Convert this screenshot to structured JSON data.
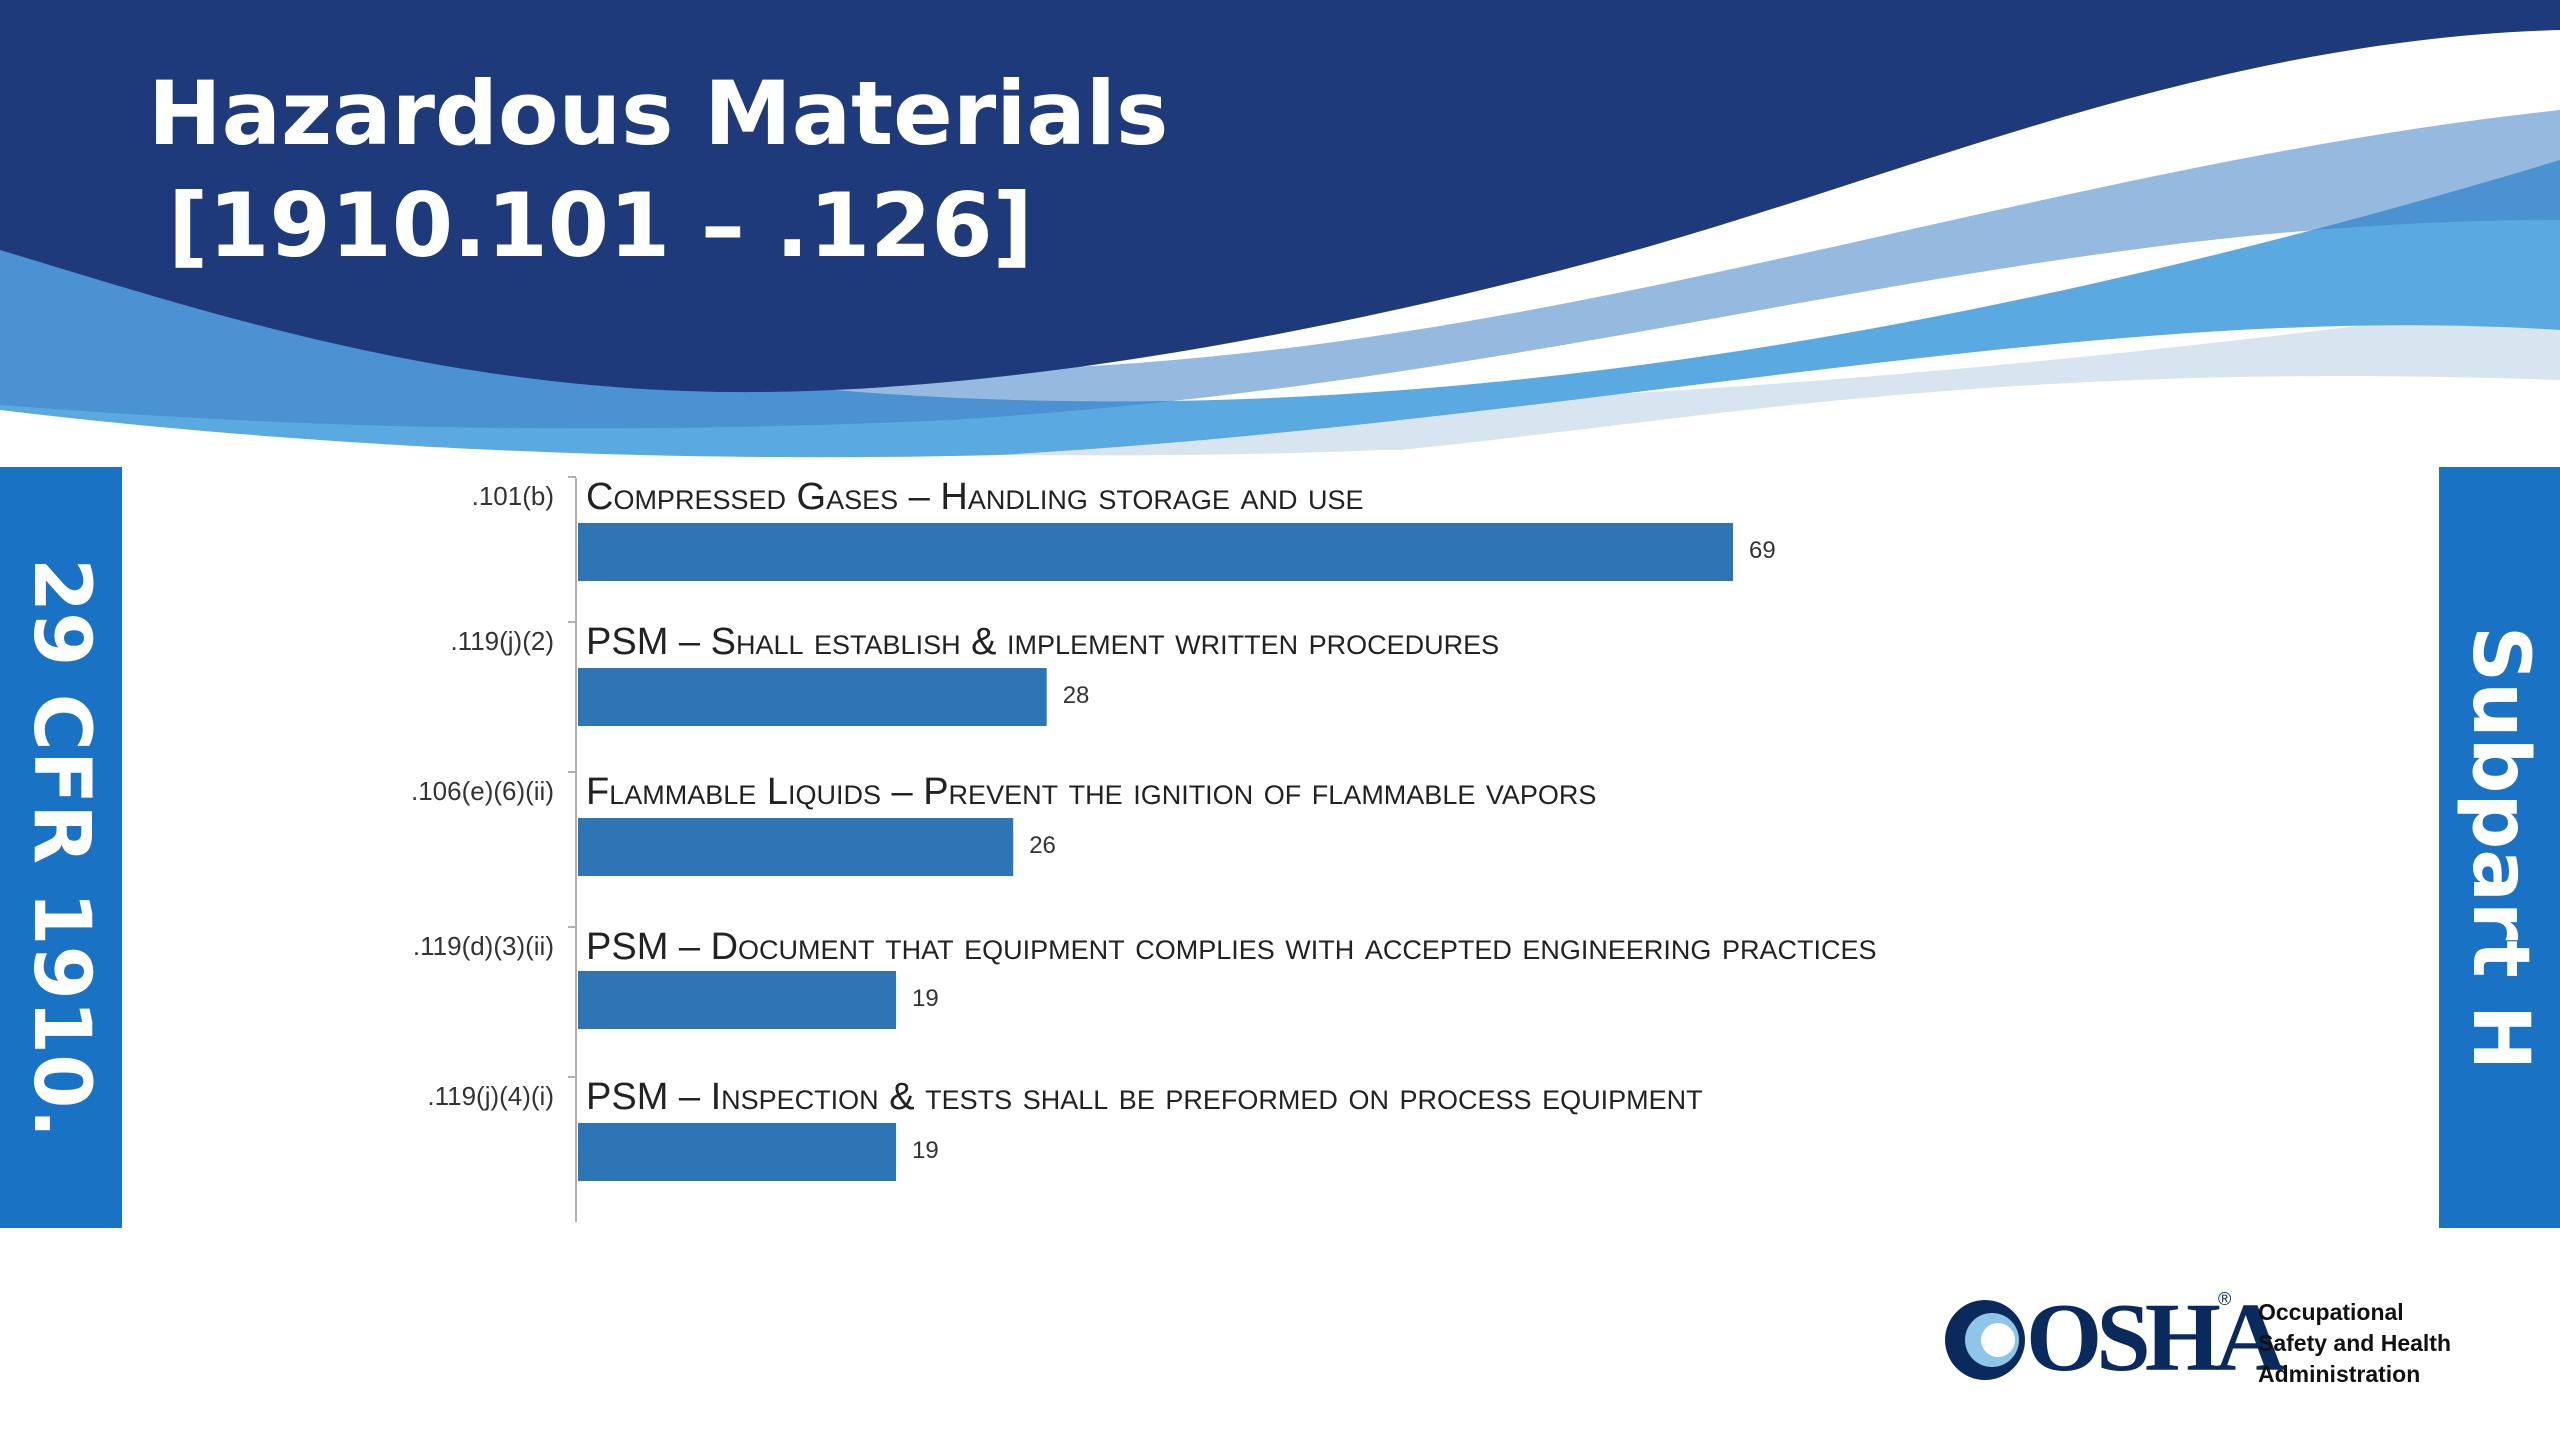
{
  "slide": {
    "title_line_1": "Hazardous Materials",
    "title_line_2": "[1910.101 – .126]",
    "left_banner": "29 CFR 1910.",
    "right_banner": "Subpart H"
  },
  "colors": {
    "header_navy": "#1f3a7a",
    "header_light_blue": "#5aa9e0",
    "header_pale_blue": "#d8e4f0",
    "banner_blue": "#1a72c4",
    "bar_blue": "#2e75b6",
    "osha_navy": "#0a2a5e"
  },
  "chart_data": {
    "type": "bar",
    "orientation": "horizontal",
    "categories": [
      ".101(b)",
      ".119(j)(2)",
      ".106(e)(6)(ii)",
      ".119(d)(3)(ii)",
      ".119(j)(4)(i)"
    ],
    "descriptions": [
      "Compressed Gases – Handling storage and use",
      "PSM – Shall establish & implement written procedures",
      "Flammable Liquids – Prevent the ignition of flammable vapors",
      "PSM – Document that equipment complies with accepted engineering practices",
      "PSM – Inspection & tests shall be preformed on process equipment"
    ],
    "values": [
      69,
      28,
      26,
      19,
      19
    ],
    "title": "",
    "xlabel": "",
    "ylabel": "",
    "xlim": [
      0,
      69
    ],
    "grid": false,
    "legend": "none"
  },
  "logo": {
    "wordmark": "OSHA",
    "registered": "®",
    "agency_line_1": "Occupational",
    "agency_line_2": "Safety and Health",
    "agency_line_3": "Administration"
  }
}
